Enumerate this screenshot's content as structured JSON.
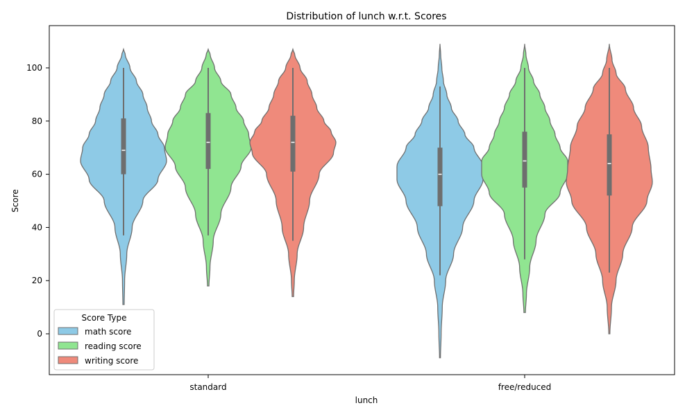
{
  "chart_data": {
    "type": "violin",
    "title": "Distribution of lunch w.r.t. Scores",
    "xlabel": "lunch",
    "ylabel": "Score",
    "ylim": [
      -15,
      115
    ],
    "yticks": [
      0,
      20,
      40,
      60,
      80,
      100
    ],
    "categories": [
      "standard",
      "free/reduced"
    ],
    "grid": false,
    "legend": {
      "title": "Score Type",
      "placement": "bottom-left"
    },
    "series": [
      {
        "name": "math score",
        "color": "#8ecae6",
        "stats": [
          {
            "category": "standard",
            "min": 11,
            "q1": 60,
            "median": 69,
            "q3": 81,
            "max": 107,
            "whisker_low": 37,
            "whisker_high": 100,
            "density": [
              [
                11,
                0.3
              ],
              [
                20,
                0.5
              ],
              [
                30,
                1.5
              ],
              [
                40,
                4
              ],
              [
                50,
                9
              ],
              [
                58,
                16
              ],
              [
                65,
                20
              ],
              [
                70,
                19
              ],
              [
                75,
                16
              ],
              [
                80,
                13
              ],
              [
                85,
                11
              ],
              [
                90,
                9
              ],
              [
                95,
                6
              ],
              [
                100,
                3
              ],
              [
                105,
                0.8
              ],
              [
                107,
                0
              ]
            ]
          },
          {
            "category": "free/reduced",
            "min": -9,
            "q1": 48,
            "median": 60,
            "q3": 70,
            "max": 109,
            "whisker_low": 22,
            "whisker_high": 93,
            "density": [
              [
                -9,
                0.2
              ],
              [
                0,
                0.5
              ],
              [
                10,
                1
              ],
              [
                20,
                2.5
              ],
              [
                30,
                6
              ],
              [
                40,
                10
              ],
              [
                50,
                15
              ],
              [
                58,
                19
              ],
              [
                63,
                19
              ],
              [
                70,
                15
              ],
              [
                75,
                11
              ],
              [
                80,
                8
              ],
              [
                85,
                5
              ],
              [
                90,
                3
              ],
              [
                95,
                1.5
              ],
              [
                100,
                0.8
              ],
              [
                105,
                0.3
              ],
              [
                109,
                0
              ]
            ]
          }
        ]
      },
      {
        "name": "reading score",
        "color": "#90e591",
        "stats": [
          {
            "category": "standard",
            "min": 18,
            "q1": 62,
            "median": 72,
            "q3": 83,
            "max": 107,
            "whisker_low": 37,
            "whisker_high": 100,
            "density": [
              [
                18,
                0.3
              ],
              [
                25,
                0.7
              ],
              [
                35,
                2
              ],
              [
                45,
                5
              ],
              [
                55,
                9
              ],
              [
                63,
                13
              ],
              [
                70,
                17
              ],
              [
                75,
                16
              ],
              [
                80,
                14
              ],
              [
                85,
                11
              ],
              [
                90,
                9
              ],
              [
                95,
                5
              ],
              [
                100,
                2.5
              ],
              [
                105,
                0.8
              ],
              [
                107,
                0
              ]
            ]
          },
          {
            "category": "free/reduced",
            "min": 8,
            "q1": 55,
            "median": 65,
            "q3": 76,
            "max": 109,
            "whisker_low": 28,
            "whisker_high": 100,
            "density": [
              [
                8,
                0.3
              ],
              [
                15,
                0.7
              ],
              [
                25,
                2
              ],
              [
                35,
                4.5
              ],
              [
                45,
                8
              ],
              [
                53,
                14
              ],
              [
                60,
                17
              ],
              [
                65,
                17
              ],
              [
                70,
                14
              ],
              [
                75,
                12
              ],
              [
                80,
                10
              ],
              [
                85,
                8
              ],
              [
                90,
                6
              ],
              [
                95,
                3.5
              ],
              [
                100,
                1.5
              ],
              [
                105,
                0.5
              ],
              [
                109,
                0
              ]
            ]
          }
        ]
      },
      {
        "name": "writing score",
        "color": "#ef8a7b",
        "stats": [
          {
            "category": "standard",
            "min": 14,
            "q1": 61,
            "median": 72,
            "q3": 82,
            "max": 107,
            "whisker_low": 35,
            "whisker_high": 100,
            "density": [
              [
                14,
                0.3
              ],
              [
                20,
                0.6
              ],
              [
                30,
                1.8
              ],
              [
                40,
                4.5
              ],
              [
                50,
                7
              ],
              [
                60,
                11
              ],
              [
                68,
                17
              ],
              [
                72,
                18
              ],
              [
                76,
                16
              ],
              [
                80,
                13
              ],
              [
                85,
                10
              ],
              [
                90,
                8
              ],
              [
                95,
                6
              ],
              [
                100,
                3
              ],
              [
                105,
                0.8
              ],
              [
                107,
                0
              ]
            ]
          },
          {
            "category": "free/reduced",
            "min": 0,
            "q1": 52,
            "median": 64,
            "q3": 75,
            "max": 109,
            "whisker_low": 23,
            "whisker_high": 100,
            "density": [
              [
                0,
                0.2
              ],
              [
                10,
                0.8
              ],
              [
                20,
                2.5
              ],
              [
                30,
                5
              ],
              [
                40,
                8.5
              ],
              [
                50,
                14
              ],
              [
                57,
                16
              ],
              [
                62,
                15.5
              ],
              [
                70,
                14.5
              ],
              [
                78,
                12
              ],
              [
                85,
                9
              ],
              [
                92,
                6
              ],
              [
                98,
                2.5
              ],
              [
                103,
                1
              ],
              [
                109,
                0
              ]
            ]
          }
        ]
      }
    ]
  }
}
